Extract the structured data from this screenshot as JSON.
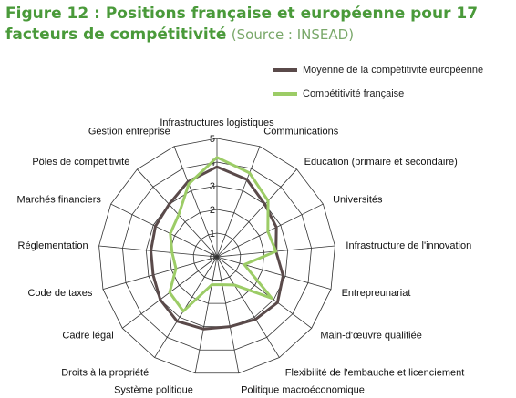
{
  "title": {
    "bold": "Figure 12 : Positions française et européenne pour 17 facteurs de compétitivité",
    "source": "(Source : INSEAD)"
  },
  "colors": {
    "series_0": "#5a4a4a",
    "series_1": "#9ccc66",
    "grid": "#333333",
    "title": "#4a9a3a"
  },
  "chart_data": {
    "type": "radar",
    "categories": [
      "Infrastructures logistiques",
      "Communications",
      "Education (primaire et secondaire)",
      "Universités",
      "Infrastructure de l'innovation",
      "Entrepreunariat",
      "Main-d'œuvre qualifiée",
      "Flexibilité de l'embauche et licenciement",
      "Politique macroéconomique",
      "Système politique",
      "Droits à la propriété",
      "Cadre légal",
      "Code de taxes",
      "Réglementation",
      "Marchés financiers",
      "Pôles de compétitivité",
      "Gestion entreprise"
    ],
    "series": [
      {
        "name": "Moyenne de la compétitivité européenne",
        "values": [
          3.8,
          3.5,
          3.0,
          2.8,
          2.5,
          2.9,
          3.2,
          3.1,
          3.0,
          3.1,
          3.2,
          3.0,
          2.8,
          2.8,
          2.9,
          3.0,
          3.4
        ]
      },
      {
        "name": "Compétitivité française",
        "values": [
          4.2,
          3.8,
          3.2,
          2.4,
          2.5,
          1.2,
          2.9,
          1.4,
          1.2,
          1.2,
          2.7,
          2.5,
          1.8,
          1.9,
          2.2,
          2.4,
          3.3
        ]
      }
    ],
    "r_ticks": [
      0,
      1,
      2,
      3,
      4,
      5
    ],
    "r_range": [
      0,
      5
    ],
    "legend_position": "top-right"
  }
}
